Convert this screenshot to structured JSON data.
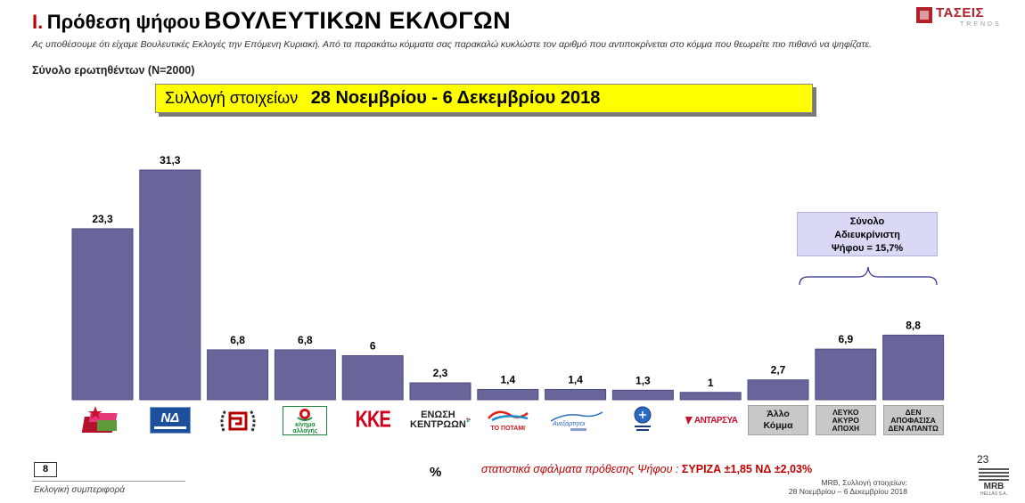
{
  "title": {
    "number": "I.",
    "prefix": "Πρόθεση ψήφου",
    "main": "ΒΟΥΛΕΥΤΙΚΩΝ ΕΚΛΟΓΩΝ"
  },
  "brand_logo": {
    "text": "ΤΑΣΕΙΣ",
    "sub": "TRENDS"
  },
  "description": "Ας υποθέσουμε ότι είχαμε Βουλευτικές Εκλογές την Επόμενη Κυριακή. Από τα παρακάτω κόμματα σας παρακαλώ κυκλώστε τον αριθμό που αντιποκρίνεται στο κόμμα που θεωρείτε πιο πιθανό να ψηφίζατε.",
  "sample": "Σύνολο ερωτηθέντων (N=2000)",
  "banner": {
    "label": "Συλλογή στοιχείων",
    "dates": "28 Νοεμβρίου - 6 Δεκεμβρίου 2018"
  },
  "chart_data": {
    "type": "bar",
    "values": [
      23.3,
      31.3,
      6.8,
      6.8,
      6,
      2.3,
      1.4,
      1.4,
      1.3,
      1,
      2.7,
      6.9,
      8.8
    ],
    "value_labels": [
      "23,3",
      "31,3",
      "6,8",
      "6,8",
      "6",
      "2,3",
      "1,4",
      "1,4",
      "1,3",
      "1",
      "2,7",
      "6,9",
      "8,8"
    ],
    "ylim": [
      0,
      31.3
    ],
    "bar_color": "#676599",
    "grid": false,
    "unit": "%"
  },
  "parties": [
    {
      "icon": "syriza-logo"
    },
    {
      "icon": "nd-logo",
      "text": "ΝΔ"
    },
    {
      "icon": "golden-dawn-logo"
    },
    {
      "icon": "kinal-logo",
      "lines": [
        "κίνημα",
        "αλλαγής"
      ]
    },
    {
      "icon": "kke-logo",
      "text": "ΚΚΕ"
    },
    {
      "icon": "union-centrists-logo",
      "lines": [
        "ΕΝΩΣΗ",
        "ΚΕΝΤΡΩΩΝ"
      ]
    },
    {
      "icon": "potami-logo",
      "text": "ΤΟ ΠΟΤΑΜΙ"
    },
    {
      "icon": "anel-logo"
    },
    {
      "icon": "elliniki-lysi-logo"
    },
    {
      "icon": "antarsya-logo",
      "text": "ΑΝΤΑΡΣΥΑ"
    },
    {
      "icon": "gray-box",
      "lines": [
        "Άλλο",
        "Κόμμα"
      ]
    },
    {
      "icon": "gray-box",
      "lines": [
        "ΛΕΥΚΟ",
        "ΑΚΥΡΟ",
        "ΑΠΟΧΗ"
      ]
    },
    {
      "icon": "gray-box",
      "lines": [
        "ΔΕΝ",
        "ΑΠΟΦΑΣΙΣΑ",
        "ΔΕΝ ΑΠΑΝΤΩ"
      ]
    }
  ],
  "undecided_note": [
    "Σύνολο",
    "Αδιευκρίνιστη",
    "Ψήφου = 15,7%"
  ],
  "footer": {
    "page_box": "8",
    "section": "Εκλογική συμπεριφορά",
    "unit_symbol": "%",
    "error_label": "στατιστικά σφάλματα πρόθεσης Ψήφου :",
    "error_values": "ΣΥΡΙΖΑ ±1,85 ΝΔ ±2,03%",
    "source": [
      "MRB, Συλλογή στοιχείων:",
      "28 Νοεμβρίου – 6 Δεκεμβρίου 2018"
    ],
    "slide_number": "23",
    "mrb_logo": {
      "text": "MRB",
      "sub": "HELLAS S.A."
    }
  }
}
